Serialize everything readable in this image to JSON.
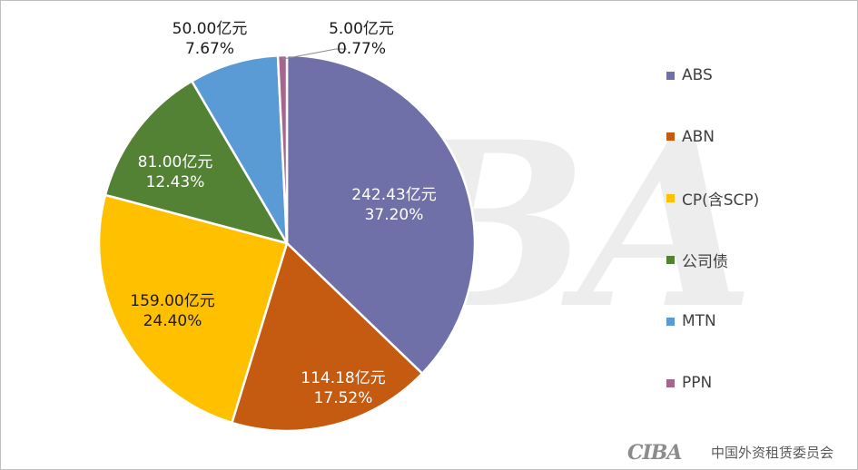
{
  "chart_data": {
    "type": "pie",
    "unit": "亿元",
    "slices": [
      {
        "name": "ABS",
        "value": 242.43,
        "value_label": "242.43亿元",
        "percent_label": "37.20%",
        "color": "#7070A8",
        "label_color": "#ffffff"
      },
      {
        "name": "ABN",
        "value": 114.18,
        "value_label": "114.18亿元",
        "percent_label": "17.52%",
        "color": "#C55A11",
        "label_color": "#ffffff"
      },
      {
        "name": "CP(含SCP)",
        "value": 159.0,
        "value_label": "159.00亿元",
        "percent_label": "24.40%",
        "color": "#FFC000",
        "label_color": "#1a1a1a"
      },
      {
        "name": "公司债",
        "value": 81.0,
        "value_label": "81.00亿元",
        "percent_label": "12.43%",
        "color": "#548235",
        "label_color": "#ffffff"
      },
      {
        "name": "MTN",
        "value": 50.0,
        "value_label": "50.00亿元",
        "percent_label": "7.67%",
        "color": "#5B9BD5",
        "label_color": "#1a1a1a"
      },
      {
        "name": "PPN",
        "value": 5.0,
        "value_label": "5.00亿元",
        "percent_label": "0.77%",
        "color": "#A5658C",
        "label_color": "#1a1a1a"
      }
    ],
    "draw_order": [
      "ABS",
      "ABN",
      "CP(含SCP)",
      "公司债",
      "MTN",
      "PPN"
    ],
    "legend_order": [
      "ABS",
      "ABN",
      "CP(含SCP)",
      "公司债",
      "MTN",
      "PPN"
    ],
    "legend_position": "right",
    "start": "12 o'clock",
    "direction": "clockwise"
  },
  "footer": {
    "logo_text": "CIBA",
    "organization": "中国外资租赁委员会"
  }
}
